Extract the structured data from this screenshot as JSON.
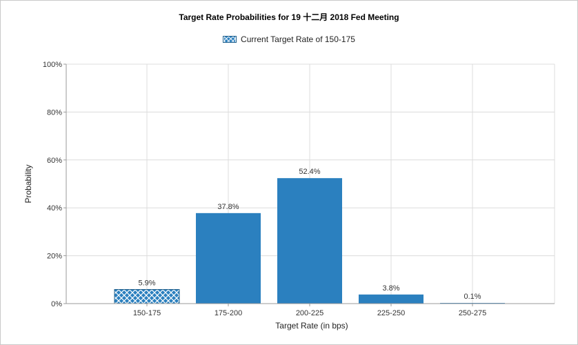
{
  "chart_data": {
    "type": "bar",
    "title": "Target Rate Probabilities for 19 十二月 2018  Fed Meeting",
    "legend": {
      "label": "Current Target Rate of 150-175",
      "placement": "top-center"
    },
    "categories": [
      "150-175",
      "175-200",
      "200-225",
      "225-250",
      "250-275"
    ],
    "values": [
      5.9,
      37.8,
      52.4,
      3.8,
      0.1
    ],
    "value_labels": [
      "5.9%",
      "37.8%",
      "52.4%",
      "3.8%",
      "0.1%"
    ],
    "highlighted_category": "150-175",
    "xlabel": "Target Rate (in bps)",
    "ylabel": "Probability",
    "ylim": [
      0,
      100
    ],
    "yticks": [
      0,
      20,
      40,
      60,
      80,
      100
    ],
    "ytick_labels": [
      "0%",
      "20%",
      "40%",
      "60%",
      "80%",
      "100%"
    ],
    "grid": true,
    "colors": {
      "bar": "#2b80bf",
      "bar_dark": "#1f5f8b",
      "grid": "#dcdcdc"
    }
  }
}
